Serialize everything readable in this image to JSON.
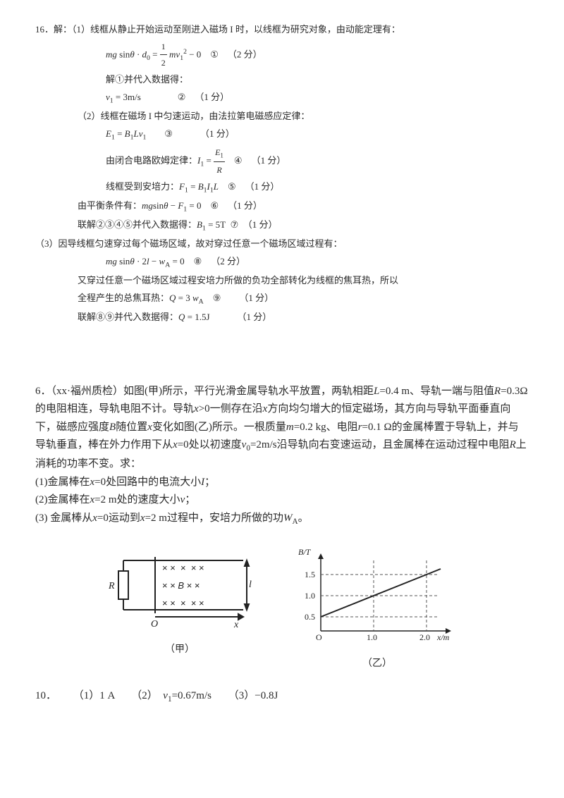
{
  "solution": {
    "header": "16．解：（1）线框从静止开始运动至刚进入磁场 I 时，以线框为研究对象，由动能定理有：",
    "lines": [
      {
        "cls": "ind2",
        "html": "<i>mg</i> sin<i>θ</i> · <i>d</i><span class='sub'>0</span> = <span class='frac'><span class='n'>1</span><span class='d'>2</span></span> <i>mv</i><span class='sub'>1</span><span class='sup'>2</span> − 0&nbsp;&nbsp;&nbsp;&nbsp;①&nbsp;&nbsp;&nbsp;&nbsp;（2 分）"
      },
      {
        "cls": "ind2",
        "html": "解①并代入数据得："
      },
      {
        "cls": "ind2",
        "html": "<i>v</i><span class='sub'>1</span> = 3m/s&nbsp;&nbsp;&nbsp;&nbsp;&nbsp;&nbsp;&nbsp;&nbsp;&nbsp;&nbsp;&nbsp;&nbsp;&nbsp;&nbsp;&nbsp;&nbsp;②&nbsp;&nbsp;&nbsp;&nbsp;（1 分）"
      },
      {
        "cls": "ind1",
        "html": "（2）线框在磁场 I 中匀速运动，由法拉第电磁感应定律："
      },
      {
        "cls": "ind2",
        "html": "<i>E</i><span class='sub'>1</span> = <i>B</i><span class='sub'>1</span><i>Lv</i><span class='sub'>1</span>&nbsp;&nbsp;&nbsp;&nbsp;&nbsp;&nbsp;&nbsp;&nbsp;③&nbsp;&nbsp;&nbsp;&nbsp;&nbsp;&nbsp;&nbsp;&nbsp;&nbsp;&nbsp;&nbsp;&nbsp;（1 分）"
      },
      {
        "cls": "ind2",
        "html": "由闭合电路欧姆定律：<i>I</i><span class='sub'>1</span> = <span class='frac'><span class='n'><i>E</i><span class='sub'>1</span></span><span class='d'><i>R</i></span></span>&nbsp;&nbsp;&nbsp;&nbsp;④&nbsp;&nbsp;&nbsp;&nbsp;（1 分）"
      },
      {
        "cls": "ind2",
        "html": "线框受到安培力：<i>F</i><span class='sub'>1</span> = <i>B</i><span class='sub'>1</span><i>I</i><span class='sub'>1</span><i>L</i>&nbsp;&nbsp;&nbsp;&nbsp;⑤&nbsp;&nbsp;&nbsp;&nbsp;（1 分）"
      },
      {
        "cls": "ind1",
        "html": "由平衡条件有：<i>mg</i>sin<i>θ</i> − <i>F</i><span class='sub'>1</span> = 0&nbsp;&nbsp;&nbsp;&nbsp;⑥&nbsp;&nbsp;&nbsp;&nbsp;（1 分）"
      },
      {
        "cls": "ind1",
        "html": "联解②③④⑤并代入数据得：<i>B</i><span class='sub'>1</span> = 5T&nbsp;&nbsp;⑦&nbsp;&nbsp;（1 分）"
      },
      {
        "cls": "ind0",
        "html": "（3）因导线框匀速穿过每个磁场区域，故对穿过任意一个磁场区域过程有："
      },
      {
        "cls": "ind2",
        "html": "<i>mg</i> sin<i>θ</i> · 2<i>l</i> − <i>w</i><span class='sub'>A</span> = 0&nbsp;&nbsp;&nbsp;&nbsp;⑧&nbsp;&nbsp;&nbsp;&nbsp;（2 分）"
      },
      {
        "cls": "ind1",
        "html": "又穿过任意一个磁场区域过程安培力所做的负功全部转化为线框的焦耳热，所以"
      },
      {
        "cls": "ind1",
        "html": "全程产生的总焦耳热：<i>Q</i> = 3 <i>w</i><span class='sub'>A</span>&nbsp;&nbsp;&nbsp;&nbsp;⑨&nbsp;&nbsp;&nbsp;&nbsp;&nbsp;&nbsp;&nbsp;&nbsp;（1 分）"
      },
      {
        "cls": "ind1",
        "html": "联解⑧⑨并代入数据得：<i>Q</i> = 1.5J&nbsp;&nbsp;&nbsp;&nbsp;&nbsp;&nbsp;&nbsp;&nbsp;&nbsp;&nbsp;&nbsp;&nbsp;（1 分）"
      }
    ]
  },
  "question": {
    "number": "6．",
    "source": "（xx·福州质检）",
    "body": "如图(甲)所示，平行光滑金属导轨水平放置，两轨相距<i>L</i>=0.4 m、导轨一端与阻值<i>R</i>=0.3Ω的电阻相连，导轨电阻不计。导轨<i>x</i>>0一侧存在沿<i>x</i>方向均匀增大的恒定磁场，其方向与导轨平面垂直向下，磁感应强度<i>B</i>随位置<i>x</i>变化如图(乙)所示。一根质量<i>m</i>=0.2 kg、电阻<i>r</i>=0.1 Ω的金属棒置于导轨上，并与导轨垂直，棒在外力作用下从<i>x</i>=0处以初速度<i>v</i><span class='sub'>0</span>=2m/s沿导轨向右变速运动，且金属棒在运动过程中电阻<i>R</i>上消耗的功率不变。求：",
    "q1": "(1)金属棒在<i>x</i>=0处回路中的电流大小<i>I</i>；",
    "q2": "(2)金属棒在<i>x</i>=2 m处的速度大小<i>v</i>；",
    "q3": "(3) 金属棒从<i>x</i>=0运动到<i>x</i>=2 m过程中，安培力所做的功<i>W</i><span class='sub'>A</span>。"
  },
  "answer": {
    "label": "10．",
    "p1": "（1）1 A",
    "p2": "（2）&nbsp;&nbsp;<i>v</i><span class='sub'>1</span>=0.67m/s",
    "p3": "（3）−0.8J"
  },
  "chart": {
    "type": "line",
    "x_label": "x/m",
    "y_label": "B/T",
    "x_ticks": [
      0,
      1.0,
      2.0
    ],
    "y_ticks": [
      0.5,
      1.0,
      1.5
    ],
    "xlim": [
      0,
      2.5
    ],
    "ylim": [
      0,
      1.8
    ],
    "line_points": [
      [
        0,
        0.5
      ],
      [
        2.5,
        1.75
      ]
    ],
    "line_color": "#333333",
    "grid_color": "#555555",
    "grid_dash": "4,3",
    "caption": "（乙）"
  },
  "circuit": {
    "caption": "（甲）",
    "labels": {
      "R": "R",
      "B": "B",
      "l": "l",
      "x": "x",
      "O": "O"
    },
    "line_color": "#222222"
  },
  "colors": {
    "text": "#2a2a2a",
    "bg": "#ffffff"
  }
}
